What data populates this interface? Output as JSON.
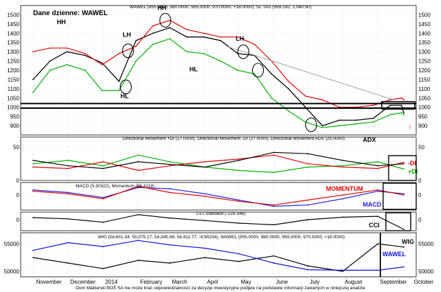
{
  "chart_title": "Dane dzienne: WAWEL",
  "footer": "Dom Maklerski BOŚ SA nie może brać odpowiedzialności za decyzje inwestycyjne podjęte na podstawie informacji zawartych w niniejszej analizie",
  "colors": {
    "price": "#000000",
    "upper_band": "#e00000",
    "lower_band": "#00b000",
    "trendline": "#a0a0a0",
    "plus_di": "#00b000",
    "minus_di": "#e00000",
    "adx": "#000000",
    "macd": "#2020e0",
    "momentum": "#e00000",
    "cci": "#000000",
    "wig": "#000000",
    "wawel": "#1010e0",
    "annotation_red": "#e00000",
    "annotation_blue": "#1010e0"
  },
  "months": [
    "November",
    "December",
    "2014",
    "February",
    "March",
    "April",
    "May",
    "June",
    "July",
    "August",
    "September",
    "October"
  ],
  "chart_data": [
    {
      "type": "line",
      "panel": "price",
      "header": "WAWEL (955.0000, 980.0000, 955.0000, 970.0000, +18.0000), SL TAS (959.192, 1,040.90)",
      "ylim": [
        850,
        1550
      ],
      "yticks": [
        900,
        950,
        1000,
        1050,
        1100,
        1150,
        1200,
        1250,
        1300,
        1350,
        1400,
        1450,
        1500
      ],
      "x": [
        "2013-10-31",
        "2013-11-15",
        "2013-11-30",
        "2013-12-16",
        "2013-12-31",
        "2014-01-15",
        "2014-01-30",
        "2014-02-14",
        "2014-03-01",
        "2014-03-16",
        "2014-03-31",
        "2014-04-15",
        "2014-04-30",
        "2014-05-15",
        "2014-05-30",
        "2014-06-14",
        "2014-06-29",
        "2014-07-14",
        "2014-07-29",
        "2014-08-13",
        "2014-08-28",
        "2014-09-12",
        "2014-09-22",
        "2014-09-24"
      ],
      "series": [
        {
          "name": "WAWEL",
          "values": [
            1150,
            1250,
            1300,
            1280,
            1240,
            1140,
            1360,
            1400,
            1430,
            1380,
            1380,
            1360,
            1290,
            1280,
            1180,
            1100,
            1000,
            900,
            930,
            930,
            940,
            1010,
            1010,
            970
          ]
        },
        {
          "name": "SL TAS upper",
          "values": [
            1300,
            1320,
            1320,
            1290,
            1230,
            1290,
            1330,
            1440,
            1470,
            1420,
            1400,
            1380,
            1380,
            1340,
            1250,
            1140,
            1060,
            1040,
            1000,
            1000,
            1010,
            1040,
            1050,
            1040
          ]
        },
        {
          "name": "SL TAS lower",
          "values": [
            1080,
            1200,
            1230,
            1200,
            1090,
            1090,
            1250,
            1340,
            1370,
            1300,
            1290,
            1250,
            1200,
            1180,
            1050,
            980,
            920,
            890,
            900,
            910,
            920,
            960,
            970,
            960
          ]
        }
      ],
      "trendline": {
        "from": [
          "2014-04-20",
          1330
        ],
        "to": [
          "2014-09-15",
          1040
        ]
      },
      "support_lines": [
        1020,
        995
      ],
      "annotations": [
        "HH",
        "LH",
        "HL",
        "HH",
        "HL",
        "LH"
      ]
    },
    {
      "type": "line",
      "panel": "directional_movement",
      "header": "Directional Movement +DI (17.0000), Directional Movement -DI (27.0000), Directional Movement ADX (25.0000)",
      "ylim": [
        0,
        65
      ],
      "yticks": [
        0,
        50
      ],
      "x": [
        "2013-10-31",
        "2013-12-01",
        "2014-01-01",
        "2014-02-01",
        "2014-03-01",
        "2014-04-01",
        "2014-05-01",
        "2014-06-01",
        "2014-07-01",
        "2014-08-01",
        "2014-09-01",
        "2014-09-24"
      ],
      "series": [
        {
          "name": "+DI",
          "values": [
            25,
            30,
            22,
            38,
            28,
            20,
            15,
            12,
            20,
            22,
            28,
            17
          ]
        },
        {
          "name": "-DI",
          "values": [
            20,
            18,
            28,
            15,
            22,
            28,
            32,
            38,
            25,
            20,
            18,
            27
          ]
        },
        {
          "name": "ADX",
          "values": [
            30,
            22,
            18,
            28,
            24,
            20,
            30,
            42,
            40,
            30,
            22,
            25
          ]
        }
      ],
      "labels": [
        "ADX",
        "-DI",
        "+DI"
      ]
    },
    {
      "type": "line",
      "panel": "macd_momentum",
      "header": "MACD (5.30322), Momentum (96.4119)",
      "yticks": [
        0
      ],
      "x": [
        "2013-10-31",
        "2013-12-01",
        "2014-01-01",
        "2014-02-01",
        "2014-03-01",
        "2014-04-01",
        "2014-05-01",
        "2014-06-01",
        "2014-07-01",
        "2014-08-01",
        "2014-09-01",
        "2014-09-24"
      ],
      "series": [
        {
          "name": "MACD",
          "values": [
            20,
            10,
            -10,
            30,
            25,
            5,
            -20,
            -45,
            -40,
            -15,
            15,
            5
          ]
        },
        {
          "name": "Momentum",
          "values": [
            15,
            5,
            -15,
            35,
            10,
            -5,
            -25,
            -40,
            -20,
            0,
            20,
            0
          ]
        }
      ],
      "labels": [
        "MOMENTUM",
        "MACD"
      ]
    },
    {
      "type": "line",
      "panel": "cci",
      "header": "CCI Standard (-228.346)",
      "yticks": [
        0
      ],
      "x": [
        "2013-10-31",
        "2013-12-01",
        "2014-01-01",
        "2014-02-01",
        "2014-03-01",
        "2014-04-01",
        "2014-05-01",
        "2014-06-01",
        "2014-07-01",
        "2014-08-01",
        "2014-09-01",
        "2014-09-24"
      ],
      "series": [
        {
          "name": "CCI",
          "values": [
            50,
            20,
            -60,
            120,
            40,
            -20,
            -80,
            -120,
            0,
            60,
            80,
            -228
          ]
        }
      ],
      "labels": [
        "CCI"
      ]
    },
    {
      "type": "line",
      "panel": "wig_comparison",
      "header": "WIG (54,601.34, 55,075.27, 54,345.08, 54,411.77, -4.90234), WAWEL (955.0000, 980.0000, 955.0000, 970.0000, +18.0000)",
      "ylim": [
        49000,
        57000
      ],
      "yticks": [
        50000,
        55000
      ],
      "x": [
        "2013-10-31",
        "2013-12-01",
        "2014-01-01",
        "2014-02-01",
        "2014-03-01",
        "2014-04-01",
        "2014-05-01",
        "2014-06-01",
        "2014-07-01",
        "2014-08-01",
        "2014-09-01",
        "2014-09-24"
      ],
      "series": [
        {
          "name": "WIG",
          "values": [
            52500,
            51500,
            50500,
            52000,
            51500,
            52500,
            51800,
            52800,
            51000,
            50000,
            55000,
            54412
          ]
        },
        {
          "name": "WAWEL",
          "values": [
            53800,
            55200,
            54500,
            55600,
            54800,
            54200,
            53200,
            51500,
            50300,
            50200,
            50200,
            50800
          ]
        }
      ],
      "labels": [
        "WIG",
        "WAWEL"
      ]
    }
  ]
}
